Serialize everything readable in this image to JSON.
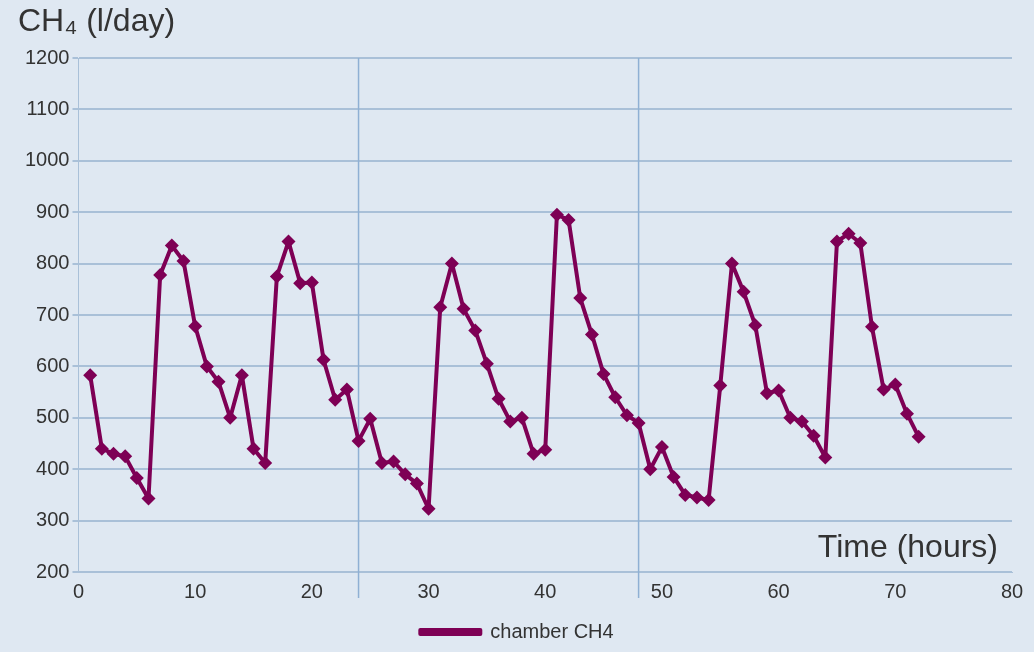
{
  "chart_data": {
    "type": "line",
    "ylabel": "CH₄ (l/day)",
    "xlabel": "Time (hours)",
    "x": [
      1,
      2,
      3,
      4,
      5,
      6,
      7,
      8,
      9,
      10,
      11,
      12,
      13,
      14,
      15,
      16,
      17,
      18,
      19,
      20,
      21,
      22,
      23,
      24,
      25,
      26,
      27,
      28,
      29,
      30,
      31,
      32,
      33,
      34,
      35,
      36,
      37,
      38,
      39,
      40,
      41,
      42,
      43,
      44,
      45,
      46,
      47,
      48,
      49,
      50,
      51,
      52,
      53,
      54,
      55,
      56,
      57,
      58,
      59,
      60,
      61,
      62,
      63,
      64,
      65,
      66,
      67,
      68,
      69,
      70,
      71,
      72
    ],
    "series": [
      {
        "name": "chamber CH4",
        "color": "#7e0055",
        "values": [
          583,
          440,
          430,
          425,
          383,
          343,
          778,
          835,
          805,
          678,
          600,
          570,
          500,
          583,
          440,
          412,
          775,
          843,
          762,
          763,
          613,
          535,
          555,
          455,
          498,
          412,
          415,
          390,
          372,
          323,
          715,
          800,
          712,
          670,
          605,
          537,
          493,
          500,
          430,
          438,
          895,
          885,
          733,
          662,
          585,
          540,
          505,
          490,
          400,
          443,
          385,
          350,
          345,
          340,
          563,
          800,
          745,
          680,
          548,
          553,
          500,
          493,
          465,
          423,
          843,
          858,
          840,
          677,
          555,
          565,
          508,
          463
        ]
      }
    ],
    "xlim": [
      0,
      80
    ],
    "xticks": [
      0,
      10,
      20,
      30,
      40,
      50,
      60,
      70,
      80
    ],
    "ylim": [
      200,
      1200
    ],
    "yticks": [
      200,
      300,
      400,
      500,
      600,
      700,
      800,
      900,
      1000,
      1100,
      1200
    ],
    "ref_lines": [
      {
        "axis": "x",
        "value": 24,
        "color": "#8fb0d4"
      },
      {
        "axis": "x",
        "value": 48,
        "color": "#8fb0d4"
      }
    ],
    "grid": "y",
    "legend": "bottom",
    "marker": "diamond",
    "line_style": "solid"
  }
}
